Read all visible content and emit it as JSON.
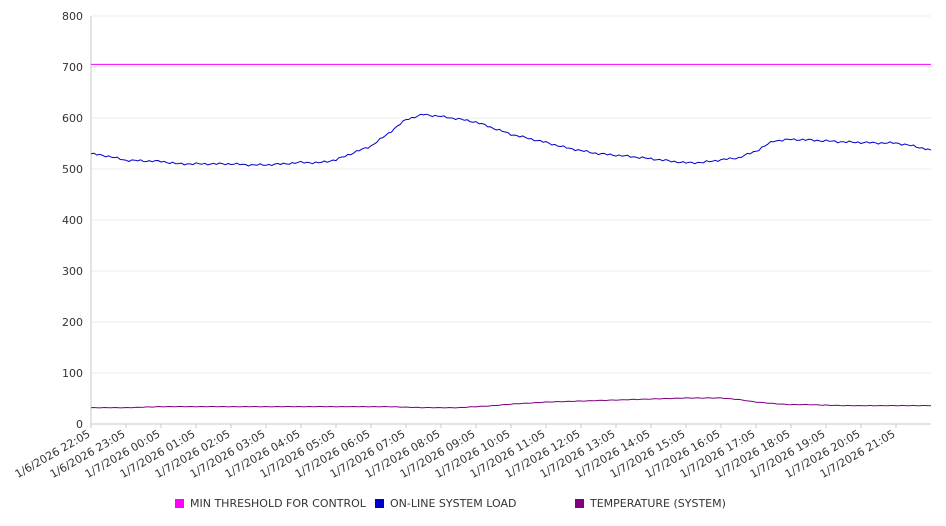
{
  "chart_data": {
    "type": "line",
    "title": "",
    "xlabel": "",
    "ylabel": "",
    "ylim": [
      0,
      800
    ],
    "y_ticks": [
      0,
      100,
      200,
      300,
      400,
      500,
      600,
      700,
      800
    ],
    "grid": true,
    "legend_placement": "bottom",
    "x_tick_labels": [
      "1/6/2026 22:05",
      "1/6/2026 23:05",
      "1/7/2026 00:05",
      "1/7/2026 01:05",
      "1/7/2026 02:05",
      "1/7/2026 03:05",
      "1/7/2026 04:05",
      "1/7/2026 05:05",
      "1/7/2026 06:05",
      "1/7/2026 07:05",
      "1/7/2026 08:05",
      "1/7/2026 09:05",
      "1/7/2026 10:05",
      "1/7/2026 11:05",
      "1/7/2026 12:05",
      "1/7/2026 13:05",
      "1/7/2026 14:05",
      "1/7/2026 15:05",
      "1/7/2026 16:05",
      "1/7/2026 17:05",
      "1/7/2026 18:05",
      "1/7/2026 19:05",
      "1/7/2026 20:05",
      "1/7/2026 21:05"
    ],
    "x": [
      "1/6/2026 22:05",
      "1/6/2026 22:35",
      "1/6/2026 23:05",
      "1/6/2026 23:35",
      "1/7/2026 00:05",
      "1/7/2026 00:35",
      "1/7/2026 01:05",
      "1/7/2026 01:35",
      "1/7/2026 02:05",
      "1/7/2026 02:35",
      "1/7/2026 03:05",
      "1/7/2026 03:35",
      "1/7/2026 04:05",
      "1/7/2026 04:35",
      "1/7/2026 05:05",
      "1/7/2026 05:35",
      "1/7/2026 06:05",
      "1/7/2026 06:35",
      "1/7/2026 07:05",
      "1/7/2026 07:35",
      "1/7/2026 08:05",
      "1/7/2026 08:35",
      "1/7/2026 09:05",
      "1/7/2026 09:35",
      "1/7/2026 10:05",
      "1/7/2026 10:35",
      "1/7/2026 11:05",
      "1/7/2026 11:35",
      "1/7/2026 12:05",
      "1/7/2026 12:35",
      "1/7/2026 13:05",
      "1/7/2026 13:35",
      "1/7/2026 14:05",
      "1/7/2026 14:35",
      "1/7/2026 15:05",
      "1/7/2026 15:35",
      "1/7/2026 16:05",
      "1/7/2026 16:35",
      "1/7/2026 17:05",
      "1/7/2026 17:35",
      "1/7/2026 18:05",
      "1/7/2026 18:35",
      "1/7/2026 19:05",
      "1/7/2026 19:35",
      "1/7/2026 20:05",
      "1/7/2026 20:35",
      "1/7/2026 21:05",
      "1/7/2026 21:35",
      "1/7/2026 22:00"
    ],
    "series": [
      {
        "name": "MIN THRESHOLD FOR CONTROL",
        "color": "#ff00ff",
        "values": [
          705,
          705,
          705,
          705,
          705,
          705,
          705,
          705,
          705,
          705,
          705,
          705,
          705,
          705,
          705,
          705,
          705,
          705,
          705,
          705,
          705,
          705,
          705,
          705,
          705,
          705,
          705,
          705,
          705,
          705,
          705,
          705,
          705,
          705,
          705,
          705,
          705,
          705,
          705,
          705,
          705,
          705,
          705,
          705,
          705,
          705,
          705,
          705,
          705
        ]
      },
      {
        "name": "ON-LINE SYSTEM LOAD",
        "color": "#0000cc",
        "values": [
          530,
          525,
          517,
          516,
          515,
          510,
          510,
          510,
          510,
          508,
          508,
          510,
          513,
          512,
          518,
          532,
          545,
          570,
          597,
          607,
          603,
          598,
          592,
          580,
          568,
          560,
          552,
          543,
          536,
          530,
          527,
          524,
          520,
          516,
          512,
          513,
          518,
          522,
          535,
          555,
          558,
          557,
          555,
          553,
          552,
          551,
          551,
          545,
          537
        ]
      },
      {
        "name": "TEMPERATURE (SYSTEM)",
        "color": "#800080",
        "values": [
          32,
          32,
          32,
          33,
          34,
          34,
          34,
          34,
          34,
          34,
          34,
          34,
          34,
          34,
          34,
          34,
          34,
          34,
          33,
          32,
          32,
          32,
          34,
          36,
          39,
          41,
          43,
          44,
          45,
          46,
          47,
          48,
          49,
          50,
          51,
          51,
          51,
          48,
          43,
          40,
          38,
          38,
          37,
          36,
          36,
          36,
          36,
          36,
          36
        ]
      }
    ]
  }
}
